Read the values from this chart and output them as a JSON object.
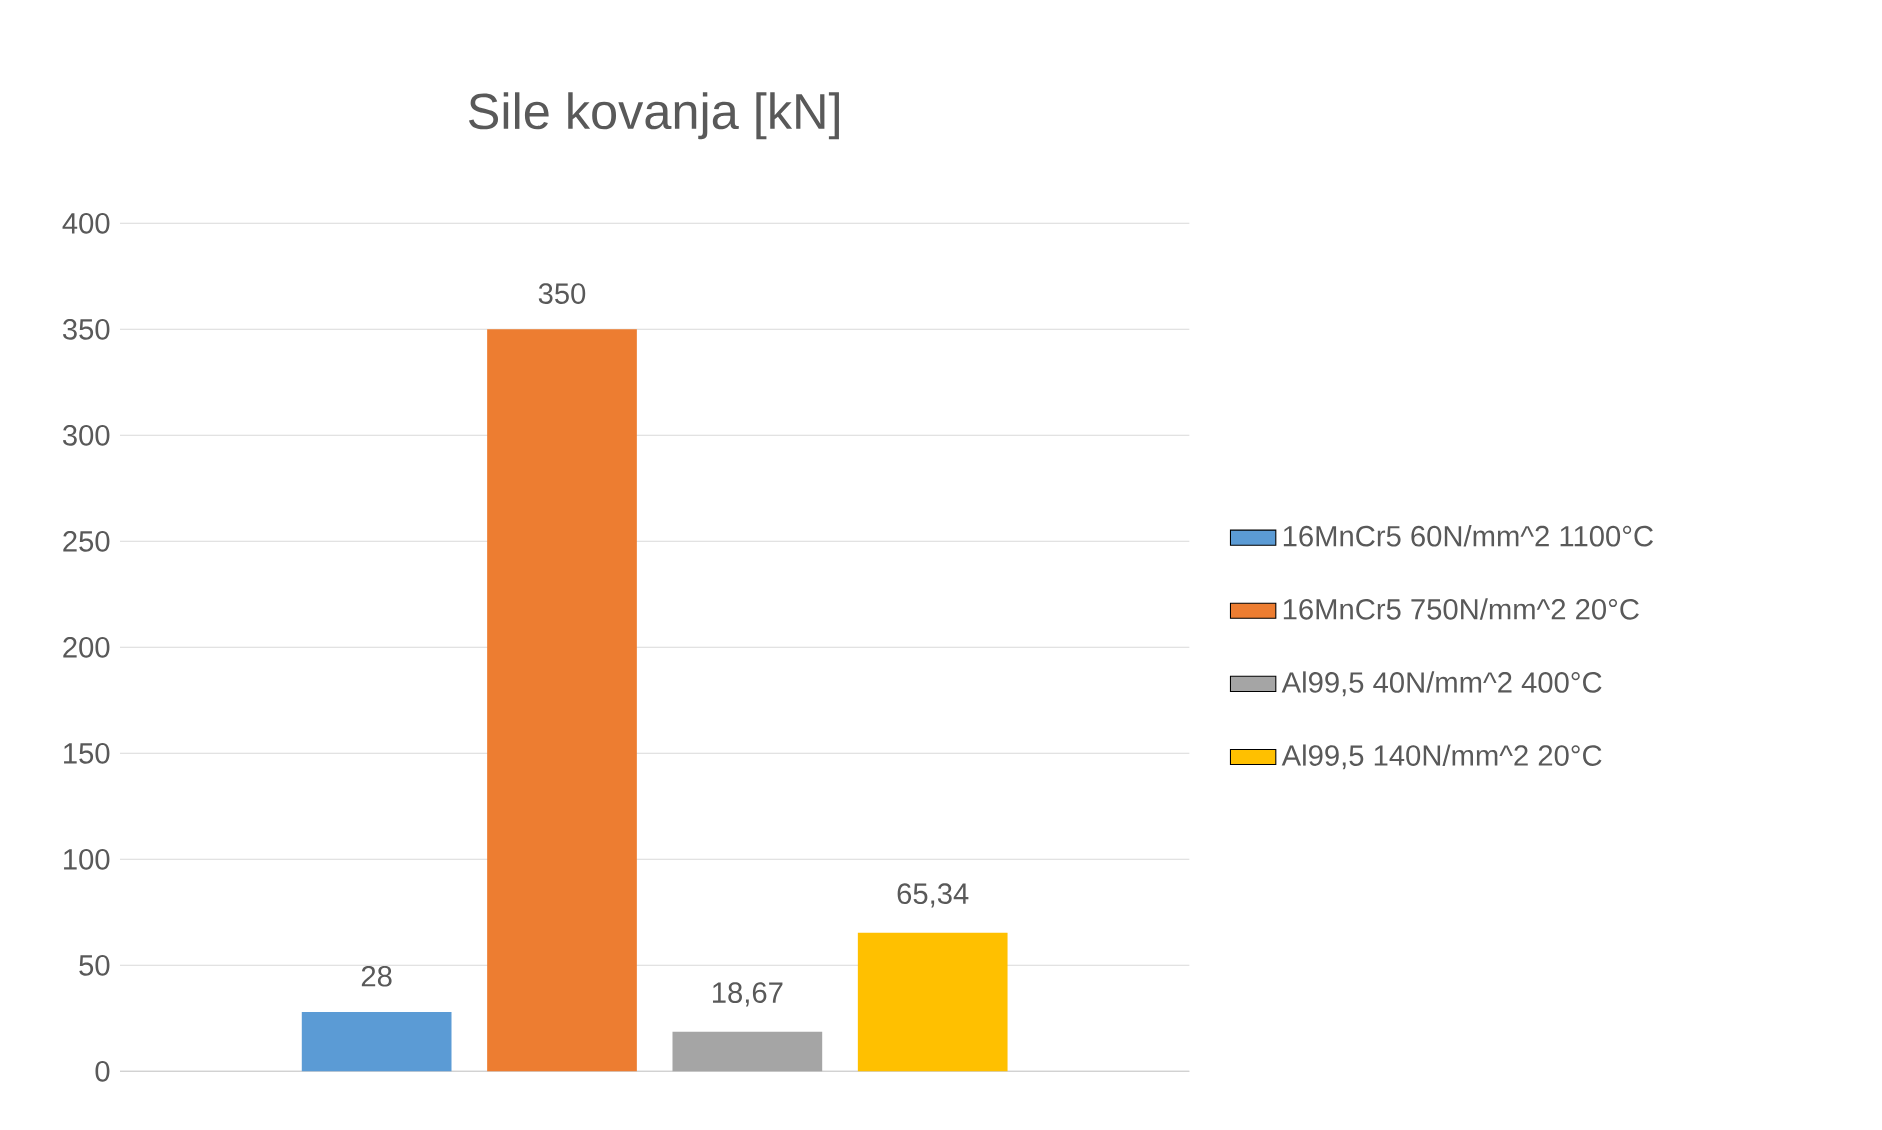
{
  "chart_data": {
    "type": "bar",
    "title": "Sile kovanja [kN]",
    "categories": [
      null
    ],
    "series": [
      {
        "name": "16MnCr5 60N/mm^2 1100°C",
        "color": "#5b9bd5",
        "values": [
          28
        ],
        "value_labels": [
          "28"
        ]
      },
      {
        "name": "16MnCr5 750N/mm^2 20°C",
        "color": "#ed7d31",
        "values": [
          350
        ],
        "value_labels": [
          "350"
        ]
      },
      {
        "name": "Al99,5 40N/mm^2 400°C",
        "color": "#a5a5a5",
        "values": [
          18.67
        ],
        "value_labels": [
          "18,67"
        ]
      },
      {
        "name": "Al99,5 140N/mm^2 20°C",
        "color": "#ffc000",
        "values": [
          65.34
        ],
        "value_labels": [
          "65,34"
        ]
      }
    ],
    "ylim": [
      0,
      400
    ],
    "yticks": [
      0,
      50,
      100,
      150,
      200,
      250,
      300,
      350,
      400
    ],
    "grid": "y",
    "legend": "right"
  }
}
